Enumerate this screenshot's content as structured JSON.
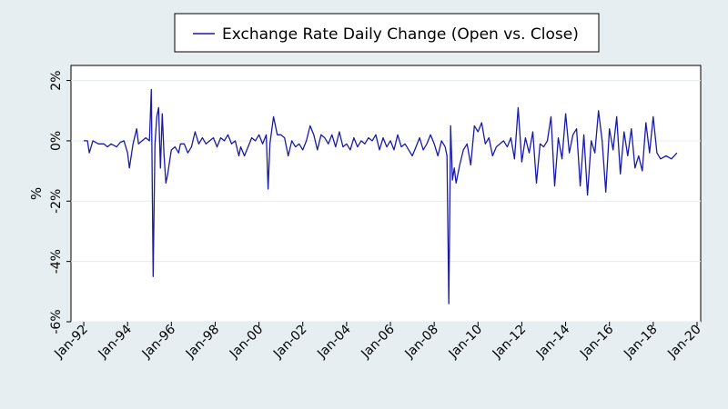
{
  "chart_data": {
    "type": "line",
    "ylabel": "%",
    "xlabel": "",
    "ylim": [
      -6,
      2.5
    ],
    "y_ticks": [
      -6,
      -4,
      -2,
      0,
      2
    ],
    "y_tick_labels": [
      "-6%",
      "-4%",
      "-2%",
      "0%",
      "2%"
    ],
    "xlim": [
      "1991-06",
      "2020-03"
    ],
    "x_ticks": [
      "1992-01",
      "1994-01",
      "1996-01",
      "1998-01",
      "2000-01",
      "2002-01",
      "2004-01",
      "2006-01",
      "2008-01",
      "2010-01",
      "2012-01",
      "2014-01",
      "2016-01",
      "2018-01",
      "2020-01"
    ],
    "x_tick_labels": [
      "Jan-92",
      "Jan-94",
      "Jan-96",
      "Jan-98",
      "Jan-00",
      "Jan-02",
      "Jan-04",
      "Jan-06",
      "Jan-08",
      "Jan-10",
      "Jan-12",
      "Jan-14",
      "Jan-16",
      "Jan-18",
      "Jan-20"
    ],
    "grid": true,
    "legend_position": "top-center",
    "series": [
      {
        "name": "Exchange Rate Daily Change (Open vs. Close)",
        "color": "#1a1aa6",
        "points": [
          [
            "1992-01",
            0.0
          ],
          [
            "1992-03",
            0.0
          ],
          [
            "1992-04",
            -0.4
          ],
          [
            "1992-06",
            0.0
          ],
          [
            "1992-09",
            -0.1
          ],
          [
            "1992-12",
            -0.1
          ],
          [
            "1993-02",
            -0.2
          ],
          [
            "1993-04",
            -0.1
          ],
          [
            "1993-07",
            -0.2
          ],
          [
            "1993-09",
            -0.05
          ],
          [
            "1993-11",
            0.0
          ],
          [
            "1994-01",
            -0.4
          ],
          [
            "1994-02",
            -0.9
          ],
          [
            "1994-04",
            -0.1
          ],
          [
            "1994-06",
            0.4
          ],
          [
            "1994-07",
            -0.1
          ],
          [
            "1994-09",
            0.0
          ],
          [
            "1994-11",
            0.1
          ],
          [
            "1995-01",
            0.0
          ],
          [
            "1995-02",
            1.7
          ],
          [
            "1995-03",
            -4.5
          ],
          [
            "1995-04",
            -0.1
          ],
          [
            "1995-05",
            0.8
          ],
          [
            "1995-06",
            1.1
          ],
          [
            "1995-07",
            -0.9
          ],
          [
            "1995-08",
            0.9
          ],
          [
            "1995-09",
            -0.5
          ],
          [
            "1995-10",
            -1.4
          ],
          [
            "1995-11",
            -1.1
          ],
          [
            "1996-01",
            -0.3
          ],
          [
            "1996-03",
            -0.2
          ],
          [
            "1996-05",
            -0.4
          ],
          [
            "1996-06",
            -0.1
          ],
          [
            "1996-08",
            -0.1
          ],
          [
            "1996-10",
            -0.4
          ],
          [
            "1996-12",
            -0.2
          ],
          [
            "1997-02",
            0.3
          ],
          [
            "1997-04",
            -0.1
          ],
          [
            "1997-06",
            0.1
          ],
          [
            "1997-08",
            -0.1
          ],
          [
            "1997-10",
            0.0
          ],
          [
            "1997-12",
            0.1
          ],
          [
            "1998-02",
            -0.2
          ],
          [
            "1998-04",
            0.1
          ],
          [
            "1998-06",
            0.0
          ],
          [
            "1998-08",
            0.2
          ],
          [
            "1998-10",
            -0.1
          ],
          [
            "1998-12",
            0.0
          ],
          [
            "1999-02",
            -0.5
          ],
          [
            "1999-03",
            -0.2
          ],
          [
            "1999-05",
            -0.5
          ],
          [
            "1999-07",
            -0.2
          ],
          [
            "1999-09",
            0.1
          ],
          [
            "1999-11",
            0.0
          ],
          [
            "2000-01",
            0.2
          ],
          [
            "2000-03",
            -0.1
          ],
          [
            "2000-05",
            0.2
          ],
          [
            "2000-06",
            -1.6
          ],
          [
            "2000-07",
            -0.1
          ],
          [
            "2000-09",
            0.8
          ],
          [
            "2000-11",
            0.2
          ],
          [
            "2001-01",
            0.2
          ],
          [
            "2001-03",
            0.1
          ],
          [
            "2001-05",
            -0.5
          ],
          [
            "2001-07",
            0.0
          ],
          [
            "2001-09",
            -0.2
          ],
          [
            "2001-11",
            -0.1
          ],
          [
            "2002-01",
            -0.3
          ],
          [
            "2002-03",
            0.0
          ],
          [
            "2002-05",
            0.5
          ],
          [
            "2002-07",
            0.2
          ],
          [
            "2002-09",
            -0.3
          ],
          [
            "2002-11",
            0.2
          ],
          [
            "2003-01",
            0.1
          ],
          [
            "2003-03",
            -0.1
          ],
          [
            "2003-05",
            0.2
          ],
          [
            "2003-07",
            -0.2
          ],
          [
            "2003-09",
            0.3
          ],
          [
            "2003-11",
            -0.2
          ],
          [
            "2004-01",
            -0.1
          ],
          [
            "2004-03",
            -0.3
          ],
          [
            "2004-05",
            0.1
          ],
          [
            "2004-07",
            -0.2
          ],
          [
            "2004-09",
            0.0
          ],
          [
            "2004-11",
            -0.1
          ],
          [
            "2005-01",
            0.1
          ],
          [
            "2005-03",
            0.0
          ],
          [
            "2005-05",
            0.2
          ],
          [
            "2005-07",
            -0.3
          ],
          [
            "2005-09",
            0.1
          ],
          [
            "2005-11",
            -0.2
          ],
          [
            "2006-01",
            0.0
          ],
          [
            "2006-03",
            -0.3
          ],
          [
            "2006-05",
            0.2
          ],
          [
            "2006-07",
            -0.2
          ],
          [
            "2006-09",
            -0.1
          ],
          [
            "2006-11",
            -0.3
          ],
          [
            "2007-01",
            -0.5
          ],
          [
            "2007-03",
            -0.2
          ],
          [
            "2007-05",
            0.1
          ],
          [
            "2007-07",
            -0.3
          ],
          [
            "2007-09",
            -0.1
          ],
          [
            "2007-11",
            0.2
          ],
          [
            "2008-01",
            -0.1
          ],
          [
            "2008-03",
            -0.5
          ],
          [
            "2008-05",
            0.0
          ],
          [
            "2008-07",
            -0.2
          ],
          [
            "2008-08",
            -0.5
          ],
          [
            "2008-09",
            -5.4
          ],
          [
            "2008-10",
            0.5
          ],
          [
            "2008-11",
            -1.3
          ],
          [
            "2008-12",
            -0.9
          ],
          [
            "2009-01",
            -1.4
          ],
          [
            "2009-03",
            -0.8
          ],
          [
            "2009-05",
            -0.3
          ],
          [
            "2009-07",
            -0.1
          ],
          [
            "2009-09",
            -0.8
          ],
          [
            "2009-11",
            0.5
          ],
          [
            "2010-01",
            0.3
          ],
          [
            "2010-03",
            0.6
          ],
          [
            "2010-05",
            -0.1
          ],
          [
            "2010-07",
            0.1
          ],
          [
            "2010-09",
            -0.5
          ],
          [
            "2010-11",
            -0.2
          ],
          [
            "2011-01",
            -0.1
          ],
          [
            "2011-03",
            0.0
          ],
          [
            "2011-05",
            -0.2
          ],
          [
            "2011-07",
            0.1
          ],
          [
            "2011-09",
            -0.6
          ],
          [
            "2011-11",
            1.1
          ],
          [
            "2012-01",
            -0.7
          ],
          [
            "2012-03",
            0.1
          ],
          [
            "2012-05",
            -0.4
          ],
          [
            "2012-07",
            0.3
          ],
          [
            "2012-09",
            -1.4
          ],
          [
            "2012-11",
            -0.1
          ],
          [
            "2013-01",
            -0.2
          ],
          [
            "2013-03",
            0.0
          ],
          [
            "2013-05",
            0.8
          ],
          [
            "2013-07",
            -1.5
          ],
          [
            "2013-09",
            0.1
          ],
          [
            "2013-11",
            -0.6
          ],
          [
            "2014-01",
            0.9
          ],
          [
            "2014-03",
            -0.4
          ],
          [
            "2014-05",
            0.2
          ],
          [
            "2014-07",
            0.4
          ],
          [
            "2014-09",
            -1.5
          ],
          [
            "2014-11",
            0.2
          ],
          [
            "2015-01",
            -1.8
          ],
          [
            "2015-03",
            0.0
          ],
          [
            "2015-05",
            -0.4
          ],
          [
            "2015-07",
            1.0
          ],
          [
            "2015-09",
            0.0
          ],
          [
            "2015-11",
            -1.7
          ],
          [
            "2016-01",
            0.4
          ],
          [
            "2016-03",
            -0.3
          ],
          [
            "2016-05",
            0.8
          ],
          [
            "2016-07",
            -1.1
          ],
          [
            "2016-09",
            0.3
          ],
          [
            "2016-11",
            -0.5
          ],
          [
            "2017-01",
            0.4
          ],
          [
            "2017-03",
            -0.9
          ],
          [
            "2017-05",
            -0.5
          ],
          [
            "2017-07",
            -1.0
          ],
          [
            "2017-09",
            0.6
          ],
          [
            "2017-11",
            -0.4
          ],
          [
            "2018-01",
            0.8
          ],
          [
            "2018-03",
            -0.4
          ],
          [
            "2018-05",
            -0.6
          ],
          [
            "2018-08",
            -0.5
          ],
          [
            "2018-11",
            -0.6
          ],
          [
            "2019-02",
            -0.4
          ]
        ]
      }
    ]
  }
}
